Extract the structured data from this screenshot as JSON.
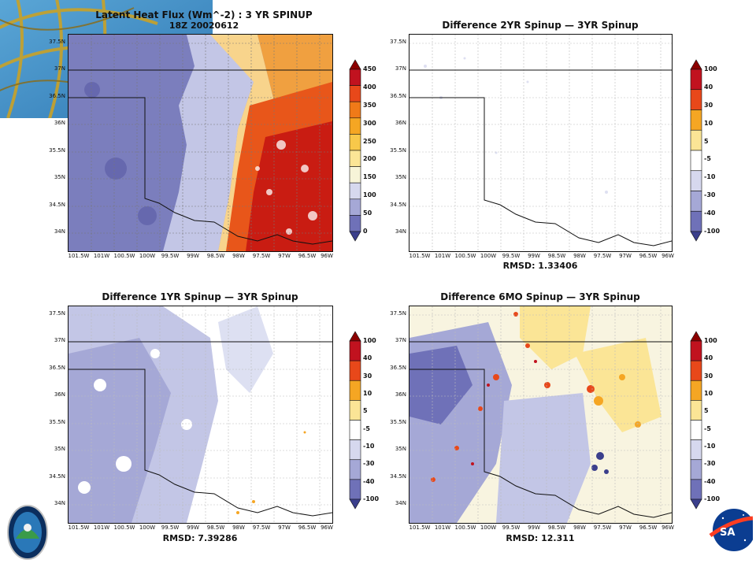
{
  "panels": [
    {
      "id": "lhf-3yr",
      "title_lines": [
        "Latent Heat Flux (Wm^-2) : 3 YR SPINUP",
        "18Z 20020612"
      ],
      "rmsd": "",
      "colorbar_labels": [
        "450",
        "400",
        "350",
        "300",
        "250",
        "200",
        "150",
        "100",
        "50",
        "0"
      ],
      "colorbar_colors": [
        "#8b0000",
        "#c1121f",
        "#e8481a",
        "#f07a18",
        "#f5a623",
        "#f8c84a",
        "#fbe596",
        "#f7f4d8",
        "#d6d8ee",
        "#a5a8d6",
        "#6f71b8",
        "#3b3f8c"
      ]
    },
    {
      "id": "diff-2yr",
      "title_lines": [
        "Difference 2YR Spinup — 3YR Spinup"
      ],
      "rmsd": "RMSD: 1.33406",
      "colorbar_labels": [
        "100",
        "40",
        "30",
        "10",
        "5",
        "-5",
        "-10",
        "-30",
        "-40",
        "-100"
      ],
      "colorbar_colors": [
        "#8b0000",
        "#c1121f",
        "#e8481a",
        "#f5a623",
        "#fbe596",
        "#ffffff",
        "#d6d8ee",
        "#a5a8d6",
        "#6f71b8",
        "#3b3f8c"
      ]
    },
    {
      "id": "diff-1yr",
      "title_lines": [
        "Difference 1YR Spinup — 3YR Spinup"
      ],
      "rmsd": "RMSD: 7.39286",
      "colorbar_labels": [
        "100",
        "40",
        "30",
        "10",
        "5",
        "-5",
        "-10",
        "-30",
        "-40",
        "-100"
      ],
      "colorbar_colors": [
        "#8b0000",
        "#c1121f",
        "#e8481a",
        "#f5a623",
        "#fbe596",
        "#ffffff",
        "#d6d8ee",
        "#a5a8d6",
        "#6f71b8",
        "#3b3f8c"
      ]
    },
    {
      "id": "diff-6mo",
      "title_lines": [
        "Difference 6MO Spinup — 3YR Spinup"
      ],
      "rmsd": "RMSD: 12.311",
      "colorbar_labels": [
        "100",
        "40",
        "30",
        "10",
        "5",
        "-5",
        "-10",
        "-30",
        "-40",
        "-100"
      ],
      "colorbar_colors": [
        "#8b0000",
        "#c1121f",
        "#e8481a",
        "#f5a623",
        "#fbe596",
        "#ffffff",
        "#d6d8ee",
        "#a5a8d6",
        "#6f71b8",
        "#3b3f8c"
      ]
    }
  ],
  "lat_labels": [
    "37.5N",
    "37N",
    "36.5N",
    "36N",
    "35.5N",
    "35N",
    "34.5N",
    "34N"
  ],
  "lon_labels": [
    "101.5W",
    "101W",
    "100.5W",
    "100W",
    "99.5W",
    "99W",
    "98.5W",
    "98W",
    "97.5W",
    "97W",
    "96.5W",
    "96W"
  ]
}
